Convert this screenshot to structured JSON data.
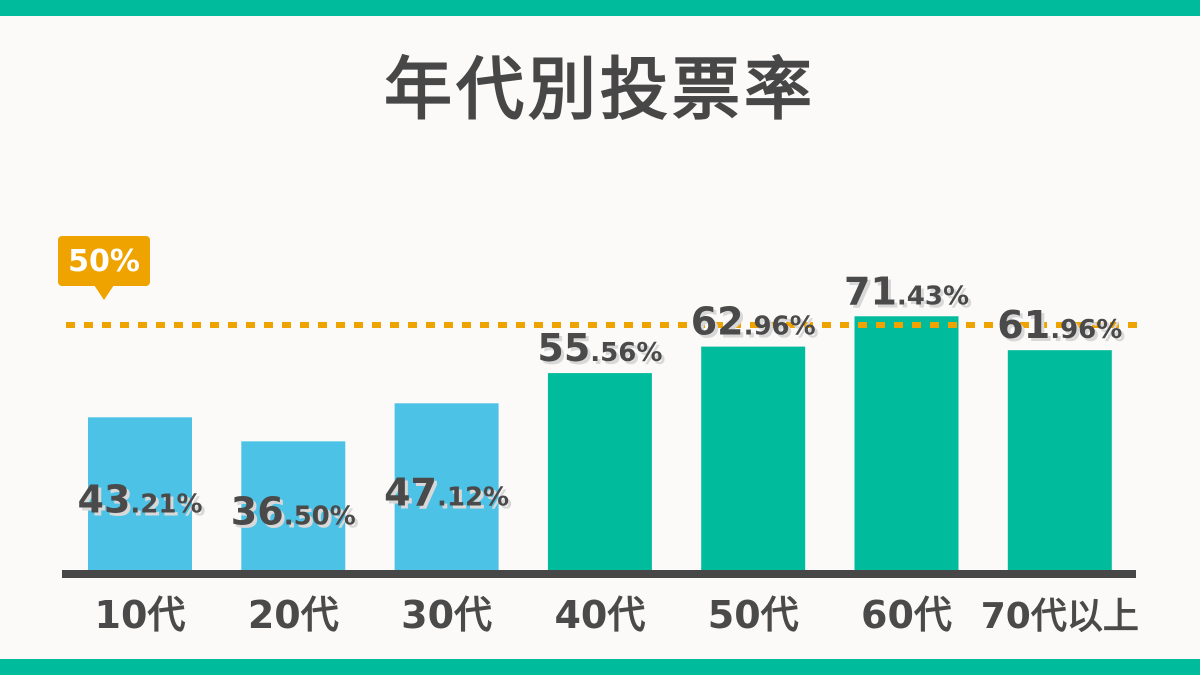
{
  "title": "年代別投票率",
  "colors": {
    "frame": "#00bb9c",
    "bar_below": "#4cc3e6",
    "bar_above": "#00bb9c",
    "reference": "#efa300",
    "axis": "#474747",
    "label": "#4a4a4a"
  },
  "reference_line": {
    "value": 50,
    "label": "50%"
  },
  "chart_data": {
    "type": "bar",
    "title": "年代別投票率",
    "categories": [
      "10代",
      "20代",
      "30代",
      "40代",
      "50代",
      "60代",
      "70代以上"
    ],
    "values": [
      43.21,
      36.5,
      47.12,
      55.56,
      62.96,
      71.43,
      61.96
    ],
    "data_labels": [
      "43.21%",
      "36.50%",
      "47.12%",
      "55.56%",
      "62.96%",
      "71.43%",
      "61.96%"
    ],
    "xlabel": "",
    "ylabel": "",
    "ylim": [
      0,
      100
    ],
    "grid": false,
    "legend": "none"
  }
}
